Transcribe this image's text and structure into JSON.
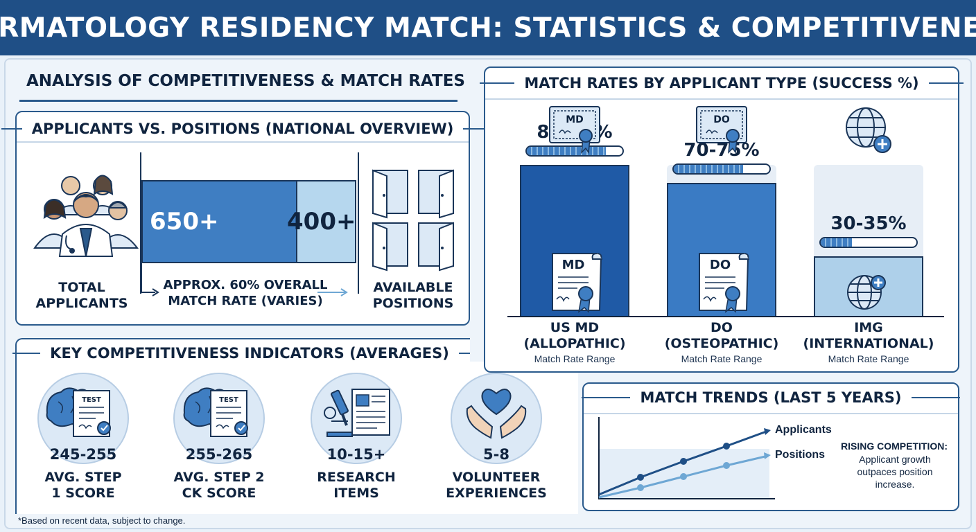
{
  "header": {
    "title": "DERMATOLOGY RESIDENCY MATCH: STATISTICS & COMPETITIVENESS"
  },
  "section": {
    "title": "ANALYSIS OF COMPETITIVENESS & MATCH RATES"
  },
  "overview": {
    "title": "APPLICANTS VS. POSITIONS (NATIONAL OVERVIEW)",
    "applicants_value": "650+",
    "positions_value": "400+",
    "applicants_label": "TOTAL APPLICANTS",
    "positions_label": "AVAILABLE POSITIONS",
    "match_note": "APPROX. 60% OVERALL MATCH RATE (VARIES)",
    "applicants_count": 650,
    "positions_count": 400
  },
  "indicators": {
    "title": "KEY COMPETITIVENESS INDICATORS (AVERAGES)",
    "items": [
      {
        "value": "245-255",
        "label": "AVG. STEP 1 SCORE",
        "icon": "brain-test-icon",
        "icon_text": "TEST"
      },
      {
        "value": "255-265",
        "label": "AVG. STEP 2 CK SCORE",
        "icon": "brain-test-icon",
        "icon_text": "TEST"
      },
      {
        "value": "10-15+",
        "label": "RESEARCH ITEMS",
        "icon": "microscope-icon"
      },
      {
        "value": "5-8",
        "label": "VOLUNTEER EXPERIENCES",
        "icon": "heart-hands-icon"
      }
    ]
  },
  "match_rates": {
    "title": "MATCH RATES BY APPLICANT TYPE (SUCCESS %)",
    "sublabel": "Match Rate Range",
    "types": [
      {
        "value": "80-85%",
        "name": "US MD (ALLOPATHIC)",
        "badge": "MD",
        "rate": 0.825,
        "color": "#1f5aa6"
      },
      {
        "value": "70-75%",
        "name": "DO (OSTEOPATHIC)",
        "badge": "DO",
        "rate": 0.725,
        "color": "#3a7bc4"
      },
      {
        "value": "30-35%",
        "name": "IMG (INTERNATIONAL)",
        "badge": "",
        "rate": 0.325,
        "color": "#aed0ea"
      }
    ]
  },
  "trends": {
    "title": "MATCH TRENDS (LAST 5 YEARS)",
    "applicants_label": "Applicants",
    "positions_label": "Positions",
    "note_title": "RISING COMPETITION:",
    "note_body": "Applicant growth outpaces position increase."
  },
  "footnote": "*Based on recent data, subject to change.",
  "colors": {
    "header": "#1f4f86",
    "accent": "#2a5a8c",
    "md": "#1f5aa6",
    "do": "#3a7bc4",
    "img": "#aed0ea"
  }
}
